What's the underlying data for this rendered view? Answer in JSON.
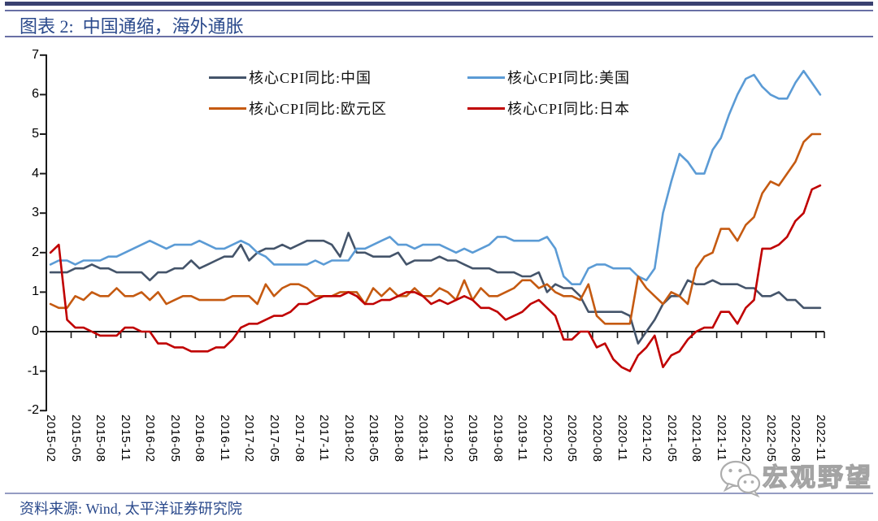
{
  "header": {
    "title": "图表 2:  中国通缩，海外通胀"
  },
  "footer": {
    "source": "资料来源: Wind, 太平洋证券研究院"
  },
  "watermark": {
    "label": "宏观野望",
    "icon": "wechat-icon"
  },
  "colors": {
    "accent_navy": "#2B4A8C",
    "rule_thick": "#3A4170",
    "rule_thin": "#6970A5",
    "rule_bottom": "#959CC3",
    "axis": "#1A1A1A",
    "watermark_gray": "#A3A3A3"
  },
  "chart_data": {
    "type": "line",
    "title": "",
    "xlabel": "",
    "ylabel": "",
    "ylim": [
      -2,
      7
    ],
    "grid": false,
    "legend_position": "top-inside",
    "y_ticks": [
      7,
      6,
      5,
      4,
      3,
      2,
      1,
      0,
      -1,
      -2
    ],
    "x_tick_labels": [
      "2015-02",
      "2015-05",
      "2015-08",
      "2015-11",
      "2016-02",
      "2016-05",
      "2016-08",
      "2016-11",
      "2017-02",
      "2017-05",
      "2017-08",
      "2017-11",
      "2018-02",
      "2018-05",
      "2018-08",
      "2018-11",
      "2019-02",
      "2019-05",
      "2019-08",
      "2019-11",
      "2020-02",
      "2020-05",
      "2020-08",
      "2020-11",
      "2021-02",
      "2021-05",
      "2021-08",
      "2021-11",
      "2022-02",
      "2022-05",
      "2022-08",
      "2022-11"
    ],
    "x": [
      "2015-02",
      "2015-03",
      "2015-04",
      "2015-05",
      "2015-06",
      "2015-07",
      "2015-08",
      "2015-09",
      "2015-10",
      "2015-11",
      "2015-12",
      "2016-01",
      "2016-02",
      "2016-03",
      "2016-04",
      "2016-05",
      "2016-06",
      "2016-07",
      "2016-08",
      "2016-09",
      "2016-10",
      "2016-11",
      "2016-12",
      "2017-01",
      "2017-02",
      "2017-03",
      "2017-04",
      "2017-05",
      "2017-06",
      "2017-07",
      "2017-08",
      "2017-09",
      "2017-10",
      "2017-11",
      "2017-12",
      "2018-01",
      "2018-02",
      "2018-03",
      "2018-04",
      "2018-05",
      "2018-06",
      "2018-07",
      "2018-08",
      "2018-09",
      "2018-10",
      "2018-11",
      "2018-12",
      "2019-01",
      "2019-02",
      "2019-03",
      "2019-04",
      "2019-05",
      "2019-06",
      "2019-07",
      "2019-08",
      "2019-09",
      "2019-10",
      "2019-11",
      "2019-12",
      "2020-01",
      "2020-02",
      "2020-03",
      "2020-04",
      "2020-05",
      "2020-06",
      "2020-07",
      "2020-08",
      "2020-09",
      "2020-10",
      "2020-11",
      "2020-12",
      "2021-01",
      "2021-02",
      "2021-03",
      "2021-04",
      "2021-05",
      "2021-06",
      "2021-07",
      "2021-08",
      "2021-09",
      "2021-10",
      "2021-11",
      "2021-12",
      "2022-01",
      "2022-02",
      "2022-03",
      "2022-04",
      "2022-05",
      "2022-06",
      "2022-07",
      "2022-08",
      "2022-09",
      "2022-10",
      "2022-11"
    ],
    "series": [
      {
        "name": "核心CPI同比:中国",
        "color": "#44546A",
        "values": [
          1.5,
          1.5,
          1.5,
          1.6,
          1.6,
          1.7,
          1.6,
          1.6,
          1.5,
          1.5,
          1.5,
          1.5,
          1.3,
          1.5,
          1.5,
          1.6,
          1.6,
          1.8,
          1.6,
          1.7,
          1.8,
          1.9,
          1.9,
          2.2,
          1.8,
          2.0,
          2.1,
          2.1,
          2.2,
          2.1,
          2.2,
          2.3,
          2.3,
          2.3,
          2.2,
          1.9,
          2.5,
          2.0,
          2.0,
          1.9,
          1.9,
          1.9,
          2.0,
          1.7,
          1.8,
          1.8,
          1.8,
          1.9,
          1.8,
          1.8,
          1.7,
          1.6,
          1.6,
          1.6,
          1.5,
          1.5,
          1.5,
          1.4,
          1.4,
          1.5,
          1.0,
          1.2,
          1.1,
          1.1,
          0.9,
          0.5,
          0.5,
          0.5,
          0.5,
          0.5,
          0.4,
          -0.3,
          0.0,
          0.3,
          0.7,
          0.9,
          0.9,
          1.3,
          1.2,
          1.2,
          1.3,
          1.2,
          1.2,
          1.2,
          1.1,
          1.1,
          0.9,
          0.9,
          1.0,
          0.8,
          0.8,
          0.6,
          0.6,
          0.6
        ]
      },
      {
        "name": "核心CPI同比:美国",
        "color": "#5B9BD5",
        "values": [
          1.7,
          1.8,
          1.8,
          1.7,
          1.8,
          1.8,
          1.8,
          1.9,
          1.9,
          2.0,
          2.1,
          2.2,
          2.3,
          2.2,
          2.1,
          2.2,
          2.2,
          2.2,
          2.3,
          2.2,
          2.1,
          2.1,
          2.2,
          2.3,
          2.2,
          2.0,
          1.9,
          1.7,
          1.7,
          1.7,
          1.7,
          1.7,
          1.8,
          1.7,
          1.8,
          1.8,
          1.8,
          2.1,
          2.1,
          2.2,
          2.3,
          2.4,
          2.2,
          2.2,
          2.1,
          2.2,
          2.2,
          2.2,
          2.1,
          2.0,
          2.1,
          2.0,
          2.1,
          2.2,
          2.4,
          2.4,
          2.3,
          2.3,
          2.3,
          2.3,
          2.4,
          2.1,
          1.4,
          1.2,
          1.2,
          1.6,
          1.7,
          1.7,
          1.6,
          1.6,
          1.6,
          1.4,
          1.3,
          1.6,
          3.0,
          3.8,
          4.5,
          4.3,
          4.0,
          4.0,
          4.6,
          4.9,
          5.5,
          6.0,
          6.4,
          6.5,
          6.2,
          6.0,
          5.9,
          5.9,
          6.3,
          6.6,
          6.3,
          6.0
        ]
      },
      {
        "name": "核心CPI同比:欧元区",
        "color": "#C55A11",
        "values": [
          0.7,
          0.6,
          0.6,
          0.9,
          0.8,
          1.0,
          0.9,
          0.9,
          1.1,
          0.9,
          0.9,
          1.0,
          0.8,
          1.0,
          0.7,
          0.8,
          0.9,
          0.9,
          0.8,
          0.8,
          0.8,
          0.8,
          0.9,
          0.9,
          0.9,
          0.7,
          1.2,
          0.9,
          1.1,
          1.2,
          1.2,
          1.1,
          0.9,
          0.9,
          0.9,
          1.0,
          1.0,
          1.0,
          0.7,
          1.1,
          0.9,
          1.1,
          0.9,
          0.9,
          1.1,
          0.9,
          0.9,
          1.1,
          1.0,
          0.8,
          1.3,
          0.8,
          1.1,
          0.9,
          0.9,
          1.0,
          1.1,
          1.3,
          1.3,
          1.1,
          1.2,
          1.0,
          0.9,
          0.9,
          0.8,
          1.2,
          0.4,
          0.2,
          0.2,
          0.2,
          0.2,
          1.4,
          1.1,
          0.9,
          0.7,
          1.0,
          0.9,
          0.7,
          1.6,
          1.9,
          2.0,
          2.6,
          2.6,
          2.3,
          2.7,
          2.9,
          3.5,
          3.8,
          3.7,
          4.0,
          4.3,
          4.8,
          5.0,
          5.0
        ]
      },
      {
        "name": "核心CPI同比:日本",
        "color": "#C00000",
        "values": [
          2.0,
          2.2,
          0.3,
          0.1,
          0.1,
          0.0,
          -0.1,
          -0.1,
          -0.1,
          0.1,
          0.1,
          0.0,
          0.0,
          -0.3,
          -0.3,
          -0.4,
          -0.4,
          -0.5,
          -0.5,
          -0.5,
          -0.4,
          -0.4,
          -0.2,
          0.1,
          0.2,
          0.2,
          0.3,
          0.4,
          0.4,
          0.5,
          0.7,
          0.7,
          0.8,
          0.9,
          0.9,
          0.9,
          1.0,
          0.9,
          0.7,
          0.7,
          0.8,
          0.8,
          0.9,
          1.0,
          1.0,
          0.9,
          0.7,
          0.8,
          0.7,
          0.8,
          0.9,
          0.8,
          0.6,
          0.6,
          0.5,
          0.3,
          0.4,
          0.5,
          0.7,
          0.8,
          0.6,
          0.4,
          -0.2,
          -0.2,
          0.0,
          0.0,
          -0.4,
          -0.3,
          -0.7,
          -0.9,
          -1.0,
          -0.6,
          -0.4,
          -0.1,
          -0.9,
          -0.6,
          -0.5,
          -0.2,
          0.0,
          0.1,
          0.1,
          0.5,
          0.5,
          0.2,
          0.6,
          0.8,
          2.1,
          2.1,
          2.2,
          2.4,
          2.8,
          3.0,
          3.6,
          3.7
        ]
      }
    ]
  }
}
